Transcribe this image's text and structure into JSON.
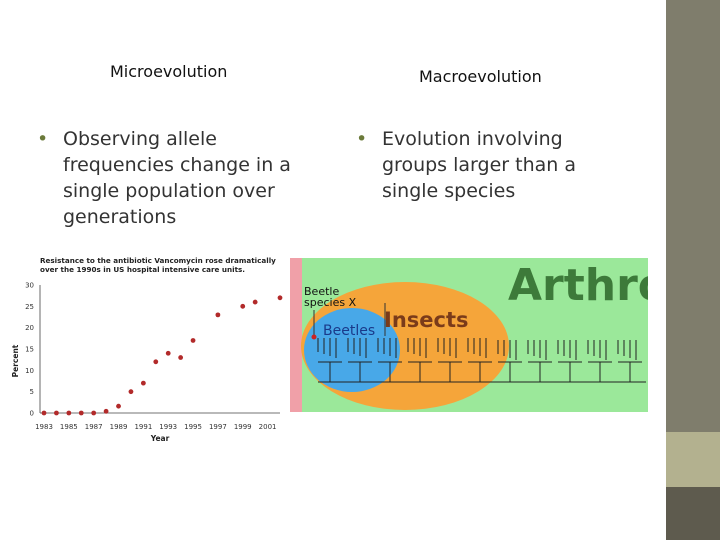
{
  "left": {
    "heading": "Microevolution",
    "bullet": "Observing allele frequencies change in a single population over generations"
  },
  "right": {
    "heading": "Macroevolution",
    "bullet": "Evolution involving groups larger than a single species"
  },
  "colors": {
    "sidebar": "#7f7d6c",
    "sidebar_light": "#b3b18f",
    "bullet": "#6b7a3a",
    "chart_points": "#b22a2a",
    "green_bg": "#9be89a",
    "insects_orange": "#f5a53a",
    "beetles_blue": "#48a8e8"
  },
  "chart_data": {
    "type": "scatter",
    "title": "Resistance to the antibiotic Vancomycin rose dramatically over the 1990s in US hospital intensive care units.",
    "xlabel": "Year",
    "ylabel": "Percent",
    "x_ticks": [
      "1983",
      "1985",
      "1987",
      "1989",
      "1991",
      "1993",
      "1995",
      "1997",
      "1999",
      "2001"
    ],
    "y_ticks": [
      0,
      5,
      10,
      15,
      20,
      25,
      30
    ],
    "xlim": [
      1983,
      2002
    ],
    "ylim": [
      0,
      30
    ],
    "points": [
      {
        "x": 1983,
        "y": 0
      },
      {
        "x": 1984,
        "y": 0
      },
      {
        "x": 1985,
        "y": 0
      },
      {
        "x": 1986,
        "y": 0
      },
      {
        "x": 1987,
        "y": 0
      },
      {
        "x": 1988,
        "y": 0.4
      },
      {
        "x": 1989,
        "y": 1.6
      },
      {
        "x": 1990,
        "y": 5
      },
      {
        "x": 1991,
        "y": 7
      },
      {
        "x": 1992,
        "y": 12
      },
      {
        "x": 1993,
        "y": 14
      },
      {
        "x": 1994,
        "y": 13
      },
      {
        "x": 1995,
        "y": 17
      },
      {
        "x": 1997,
        "y": 23
      },
      {
        "x": 1999,
        "y": 25
      },
      {
        "x": 2000,
        "y": 26
      },
      {
        "x": 2002,
        "y": 27
      }
    ]
  },
  "diagram": {
    "big_label": "Arthro",
    "insects_label": "Insects",
    "beetles_label": "Beetles",
    "species_label_1": "Beetle",
    "species_label_2": "species X"
  }
}
